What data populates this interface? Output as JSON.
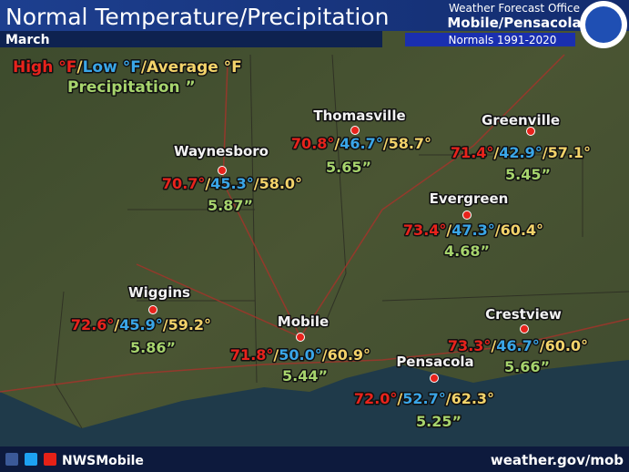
{
  "header": {
    "title": "Normal Temperature/Precipitation",
    "month": "March",
    "office": "Weather Forecast Office",
    "office_name": "Mobile/Pensacola",
    "normals": "Normals 1991-2020"
  },
  "legend": {
    "high": "High °F",
    "low": "Low °F",
    "average": "Average °F",
    "precipitation": "Precipitation ”"
  },
  "separator": "/",
  "stations": [
    {
      "name": "Thomasville",
      "high": "70.8°",
      "low": "46.7°",
      "average": "58.7°",
      "precipitation": "5.65”"
    },
    {
      "name": "Greenville",
      "high": "71.4°",
      "low": "42.9°",
      "average": "57.1°",
      "precipitation": "5.45”"
    },
    {
      "name": "Waynesboro",
      "high": "70.7°",
      "low": "45.3°",
      "average": "58.0°",
      "precipitation": "5.87”"
    },
    {
      "name": "Evergreen",
      "high": "73.4°",
      "low": "47.3°",
      "average": "60.4°",
      "precipitation": "4.68”"
    },
    {
      "name": "Wiggins",
      "high": "72.6°",
      "low": "45.9°",
      "average": "59.2°",
      "precipitation": "5.86”"
    },
    {
      "name": "Mobile",
      "high": "71.8°",
      "low": "50.0°",
      "average": "60.9°",
      "precipitation": "5.44”"
    },
    {
      "name": "Pensacola",
      "high": "72.0°",
      "low": "52.7°",
      "average": "62.3°",
      "precipitation": "5.25”"
    },
    {
      "name": "Crestview",
      "high": "73.3°",
      "low": "46.7°",
      "average": "60.0°",
      "precipitation": "5.66”"
    }
  ],
  "footer": {
    "social": "NWSMobile",
    "website": "weather.gov/mob"
  }
}
